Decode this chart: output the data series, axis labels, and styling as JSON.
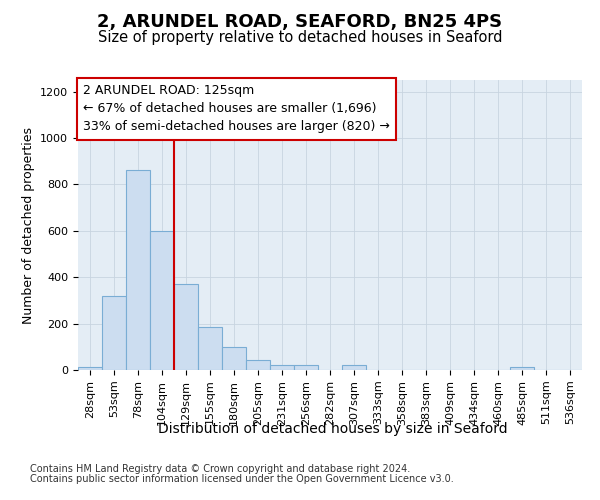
{
  "title1": "2, ARUNDEL ROAD, SEAFORD, BN25 4PS",
  "title2": "Size of property relative to detached houses in Seaford",
  "xlabel": "Distribution of detached houses by size in Seaford",
  "ylabel": "Number of detached properties",
  "footnote1": "Contains HM Land Registry data © Crown copyright and database right 2024.",
  "footnote2": "Contains public sector information licensed under the Open Government Licence v3.0.",
  "bar_labels": [
    "28sqm",
    "53sqm",
    "78sqm",
    "104sqm",
    "129sqm",
    "155sqm",
    "180sqm",
    "205sqm",
    "231sqm",
    "256sqm",
    "282sqm",
    "307sqm",
    "333sqm",
    "358sqm",
    "383sqm",
    "409sqm",
    "434sqm",
    "460sqm",
    "485sqm",
    "511sqm",
    "536sqm"
  ],
  "bar_values": [
    15,
    320,
    860,
    600,
    370,
    185,
    100,
    45,
    20,
    20,
    0,
    20,
    0,
    0,
    0,
    0,
    0,
    0,
    15,
    0,
    0
  ],
  "bar_color": "#ccddf0",
  "bar_edge_color": "#7aadd4",
  "annotation_text": "2 ARUNDEL ROAD: 125sqm\n← 67% of detached houses are smaller (1,696)\n33% of semi-detached houses are larger (820) →",
  "vline_color": "#cc0000",
  "vline_x": 4.0,
  "ylim_max": 1250,
  "yticks": [
    0,
    200,
    400,
    600,
    800,
    1000,
    1200
  ],
  "grid_color": "#c8d4e0",
  "bg_color": "#e4edf5",
  "title1_fontsize": 13,
  "title2_fontsize": 10.5,
  "ylabel_fontsize": 9,
  "xlabel_fontsize": 10,
  "tick_fontsize": 8,
  "annot_fontsize": 9,
  "footnote_fontsize": 7
}
